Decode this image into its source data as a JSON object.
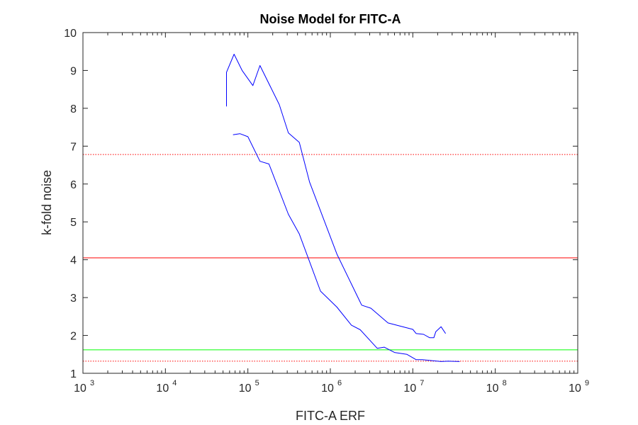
{
  "chart_data": {
    "type": "line",
    "title": "Noise Model for FITC-A",
    "xlabel": "FITC-A ERF",
    "ylabel": "k-fold noise",
    "x_scale": "log",
    "xlim": [
      1000,
      1000000000
    ],
    "ylim": [
      1,
      10
    ],
    "x_ticks": [
      {
        "base": "10",
        "exp": "3",
        "value": 1000
      },
      {
        "base": "10",
        "exp": "4",
        "value": 10000
      },
      {
        "base": "10",
        "exp": "5",
        "value": 100000
      },
      {
        "base": "10",
        "exp": "6",
        "value": 1000000
      },
      {
        "base": "10",
        "exp": "7",
        "value": 10000000
      },
      {
        "base": "10",
        "exp": "8",
        "value": 100000000
      },
      {
        "base": "10",
        "exp": "9",
        "value": 1000000000
      }
    ],
    "y_ticks": [
      "1",
      "2",
      "3",
      "4",
      "5",
      "6",
      "7",
      "8",
      "9",
      "10"
    ],
    "grid": false,
    "series": [
      {
        "color": "#0000ff",
        "style": "solid",
        "points": [
          [
            55000,
            8.05
          ],
          [
            55000,
            8.95
          ],
          [
            68000,
            9.43
          ],
          [
            85000,
            9.0
          ],
          [
            115000,
            8.6
          ],
          [
            140000,
            9.13
          ],
          [
            240000,
            8.1
          ],
          [
            310000,
            7.35
          ],
          [
            420000,
            7.1
          ],
          [
            560000,
            6.05
          ],
          [
            1200000,
            4.15
          ],
          [
            2400000,
            2.8
          ],
          [
            3100000,
            2.72
          ],
          [
            5000000,
            2.33
          ],
          [
            10000000,
            2.16
          ],
          [
            11000000,
            2.05
          ],
          [
            13500000,
            2.03
          ],
          [
            16000000,
            1.94
          ],
          [
            18000000,
            1.94
          ],
          [
            19000000,
            2.1
          ],
          [
            22000000,
            2.23
          ],
          [
            25000000,
            2.05
          ]
        ]
      },
      {
        "color": "#0000ff",
        "style": "solid",
        "points": [
          [
            66000,
            7.3
          ],
          [
            80000,
            7.33
          ],
          [
            100000,
            7.25
          ],
          [
            140000,
            6.6
          ],
          [
            180000,
            6.53
          ],
          [
            310000,
            5.2
          ],
          [
            420000,
            4.68
          ],
          [
            760000,
            3.17
          ],
          [
            1200000,
            2.75
          ],
          [
            1800000,
            2.27
          ],
          [
            2300000,
            2.15
          ],
          [
            3700000,
            1.66
          ],
          [
            4500000,
            1.69
          ],
          [
            6000000,
            1.55
          ],
          [
            8500000,
            1.5
          ],
          [
            11000000,
            1.36
          ],
          [
            13000000,
            1.36
          ],
          [
            22000000,
            1.31
          ],
          [
            27000000,
            1.32
          ],
          [
            37000000,
            1.31
          ]
        ]
      }
    ],
    "reference_lines": [
      {
        "y": 6.78,
        "color": "#ff0000",
        "style": "dotted"
      },
      {
        "y": 4.05,
        "color": "#ff0000",
        "style": "solid"
      },
      {
        "y": 1.62,
        "color": "#00ff00",
        "style": "solid"
      },
      {
        "y": 1.32,
        "color": "#ff0000",
        "style": "dotted"
      }
    ]
  }
}
